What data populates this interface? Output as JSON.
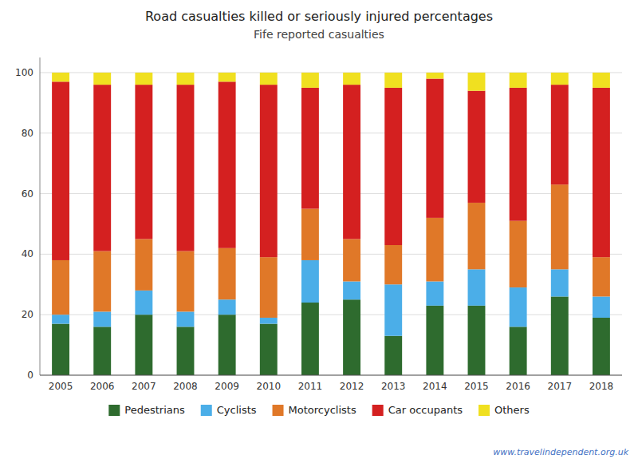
{
  "chart_data": {
    "type": "bar",
    "stacked": true,
    "title": "Road casualties killed or seriously injured percentages",
    "subtitle": "Fife reported casualties",
    "annotations": [
      "www.travelindependent.org.uk"
    ],
    "categories": [
      "2005",
      "2006",
      "2007",
      "2008",
      "2009",
      "2010",
      "2011",
      "2012",
      "2013",
      "2014",
      "2015",
      "2016",
      "2017",
      "2018"
    ],
    "series": [
      {
        "name": "Pedestrians",
        "color": "#2e6b2e",
        "values": [
          17,
          16,
          20,
          16,
          20,
          17,
          24,
          25,
          13,
          23,
          23,
          16,
          26,
          19
        ]
      },
      {
        "name": "Cyclists",
        "color": "#4baee8",
        "values": [
          3,
          5,
          8,
          5,
          5,
          2,
          14,
          6,
          17,
          8,
          12,
          13,
          9,
          7
        ]
      },
      {
        "name": "Motorcyclists",
        "color": "#e07828",
        "values": [
          18,
          20,
          17,
          20,
          17,
          20,
          17,
          14,
          13,
          21,
          22,
          22,
          28,
          13
        ]
      },
      {
        "name": "Car occupants",
        "color": "#d42020",
        "values": [
          59,
          55,
          51,
          55,
          55,
          57,
          40,
          51,
          52,
          46,
          37,
          44,
          33,
          56
        ]
      },
      {
        "name": "Others",
        "color": "#f0e020",
        "values": [
          3,
          4,
          4,
          4,
          3,
          4,
          5,
          4,
          5,
          2,
          6,
          5,
          4,
          5
        ]
      }
    ],
    "ylim": [
      0,
      105
    ],
    "yticks": [
      0,
      20,
      40,
      60,
      80,
      100
    ],
    "grid": true,
    "legend": "bottom"
  }
}
